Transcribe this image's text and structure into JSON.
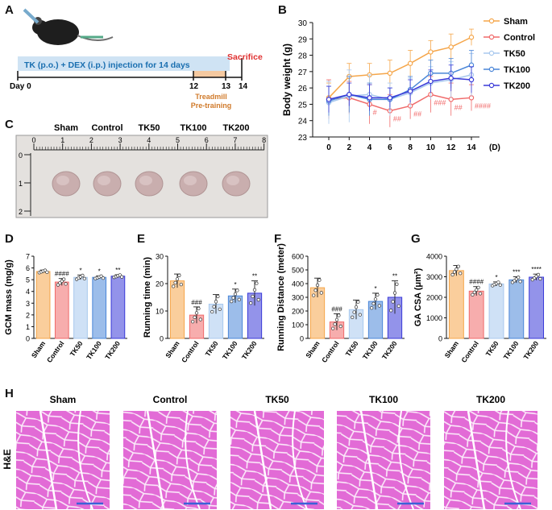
{
  "panels": {
    "A": "A",
    "B": "B",
    "C": "C",
    "D": "D",
    "E": "E",
    "F": "F",
    "G": "G",
    "H": "H"
  },
  "timeline": {
    "treatment": "TK (p.o.) + DEX (i.p.) injection for 14 days",
    "sacrifice": "Sacrifice",
    "day0": "Day 0",
    "d12": "12",
    "d13": "13",
    "d14": "14",
    "treadmill": "Treadmill",
    "pretraining": "Pre-training"
  },
  "photo": {
    "labels": [
      "Sham",
      "Control",
      "TK50",
      "TK100",
      "TK200"
    ],
    "ruler_top": [
      "0",
      "1",
      "2",
      "3",
      "4",
      "5",
      "6",
      "7",
      "8"
    ],
    "ruler_side": [
      "0",
      "1",
      "2"
    ]
  },
  "he": {
    "labels": [
      "Sham",
      "Control",
      "TK50",
      "TK100",
      "TK200"
    ],
    "side_label": "H&E"
  },
  "colors": {
    "Sham": "#f5a64a",
    "Control": "#f06a6a",
    "TK50": "#a8c8ee",
    "TK100": "#4a86d8",
    "TK200": "#3a3ad8"
  },
  "chart_data": [
    {
      "type": "line",
      "panel": "B",
      "ylabel": "Body weight (g)",
      "xlabel": "(D)",
      "x": [
        0,
        2,
        4,
        6,
        8,
        10,
        12,
        14
      ],
      "ylim": [
        23,
        30
      ],
      "yticks": [
        23,
        24,
        25,
        26,
        27,
        28,
        29,
        30
      ],
      "legend_position": "right",
      "series": [
        {
          "name": "Sham",
          "values": [
            25.4,
            26.7,
            26.8,
            26.9,
            27.5,
            28.2,
            28.5,
            29.1
          ],
          "errors": [
            0.9,
            0.8,
            0.7,
            0.8,
            0.8,
            0.7,
            0.8,
            0.5
          ]
        },
        {
          "name": "Control",
          "values": [
            25.3,
            25.4,
            25.0,
            24.6,
            24.9,
            25.6,
            25.3,
            25.4
          ],
          "errors": [
            1.2,
            1.0,
            1.2,
            1.0,
            0.8,
            1.1,
            1.0,
            0.8
          ]
        },
        {
          "name": "TK50",
          "values": [
            25.1,
            25.5,
            25.6,
            25.3,
            25.7,
            26.3,
            26.5,
            26.8
          ],
          "errors": [
            1.3,
            1.6,
            1.2,
            1.0,
            0.9,
            1.0,
            1.1,
            1.3
          ]
        },
        {
          "name": "TK100",
          "values": [
            25.2,
            25.6,
            25.3,
            25.3,
            25.9,
            26.9,
            26.9,
            27.4
          ],
          "errors": [
            0.9,
            1.1,
            1.0,
            0.7,
            0.8,
            0.8,
            0.9,
            0.9
          ]
        },
        {
          "name": "TK200",
          "values": [
            25.3,
            25.6,
            25.4,
            25.4,
            25.8,
            26.4,
            26.6,
            26.5
          ],
          "errors": [
            0.8,
            0.7,
            0.8,
            0.6,
            0.7,
            0.7,
            0.8,
            0.8
          ]
        }
      ],
      "annotations": [
        {
          "x": 4,
          "text": "#"
        },
        {
          "x": 6,
          "text": "##"
        },
        {
          "x": 8,
          "text": "##"
        },
        {
          "x": 10,
          "text": "###"
        },
        {
          "x": 12,
          "text": "##"
        },
        {
          "x": 14,
          "text": "####"
        }
      ]
    },
    {
      "type": "bar",
      "panel": "D",
      "ylabel": "GCM mass (mg/g)",
      "categories": [
        "Sham",
        "Control",
        "TK50",
        "TK100",
        "TK200"
      ],
      "values": [
        5.7,
        4.8,
        5.2,
        5.2,
        5.3
      ],
      "errors": [
        0.12,
        0.3,
        0.2,
        0.12,
        0.12
      ],
      "ylim": [
        0,
        7
      ],
      "yticks": [
        0,
        1,
        2,
        3,
        4,
        5,
        6,
        7
      ],
      "annotations": [
        "",
        "####",
        "*",
        "*",
        "**"
      ]
    },
    {
      "type": "bar",
      "panel": "E",
      "ylabel": "Running time (min)",
      "categories": [
        "Sham",
        "Control",
        "TK50",
        "TK100",
        "TK200"
      ],
      "values": [
        21,
        8.5,
        12.5,
        15.5,
        16.5
      ],
      "errors": [
        2.5,
        3,
        3.5,
        2.5,
        4.5
      ],
      "ylim": [
        0,
        30
      ],
      "yticks": [
        0,
        10,
        20,
        30
      ],
      "annotations": [
        "",
        "###",
        "",
        "*",
        "**"
      ]
    },
    {
      "type": "bar",
      "panel": "F",
      "ylabel": "Running Distance (meter)",
      "categories": [
        "Sham",
        "Control",
        "TK50",
        "TK100",
        "TK200"
      ],
      "values": [
        370,
        120,
        210,
        270,
        300
      ],
      "errors": [
        70,
        60,
        70,
        60,
        120
      ],
      "ylim": [
        0,
        600
      ],
      "yticks": [
        0,
        100,
        200,
        300,
        400,
        500,
        600
      ],
      "annotations": [
        "",
        "###",
        "",
        "*",
        "**"
      ]
    },
    {
      "type": "bar",
      "panel": "G",
      "ylabel": "GA CSA (μm²)",
      "categories": [
        "Sham",
        "Control",
        "TK50",
        "TK100",
        "TK200"
      ],
      "values": [
        3300,
        2300,
        2650,
        2850,
        2980
      ],
      "errors": [
        250,
        220,
        100,
        150,
        150
      ],
      "ylim": [
        0,
        4000
      ],
      "yticks": [
        0,
        1000,
        2000,
        3000,
        4000
      ],
      "annotations": [
        "",
        "####",
        "*",
        "***",
        "****"
      ]
    }
  ]
}
